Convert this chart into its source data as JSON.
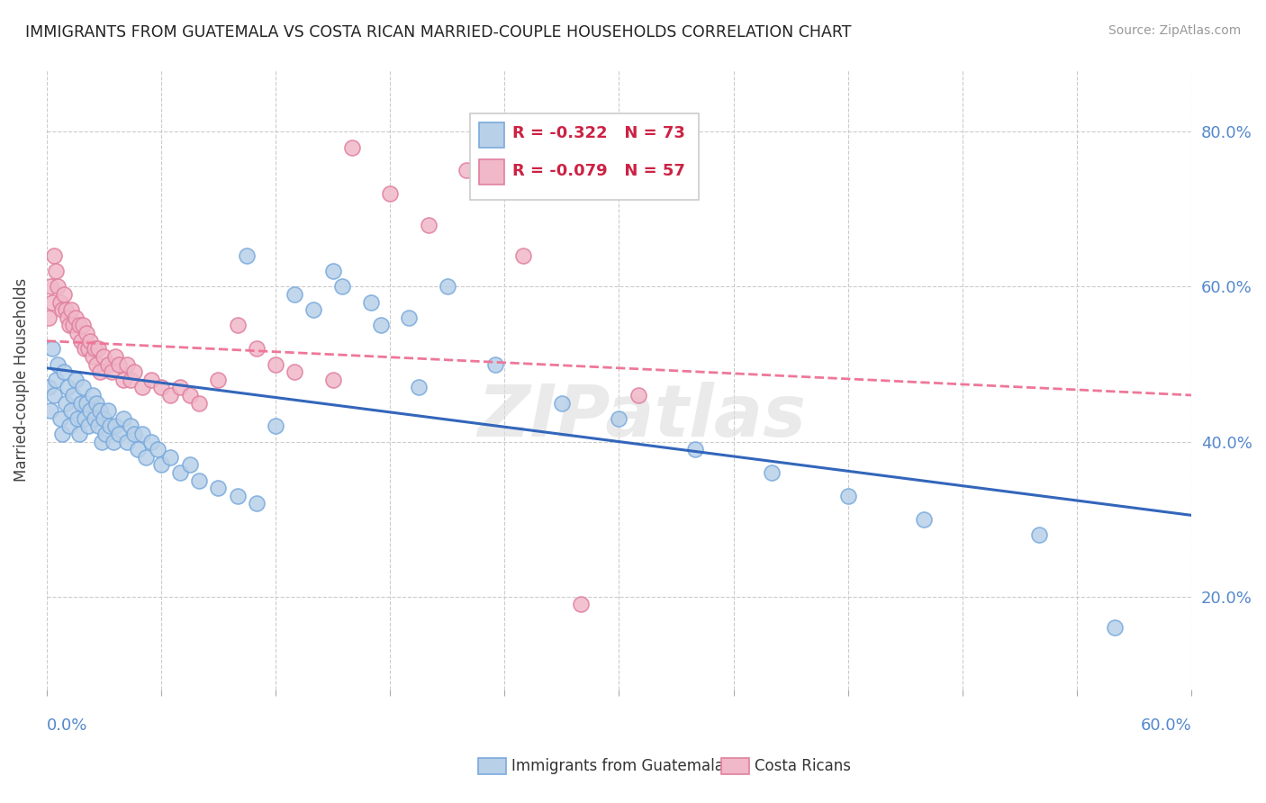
{
  "title": "IMMIGRANTS FROM GUATEMALA VS COSTA RICAN MARRIED-COUPLE HOUSEHOLDS CORRELATION CHART",
  "source": "Source: ZipAtlas.com",
  "ylabel": "Married-couple Households",
  "xlim": [
    0.0,
    0.6
  ],
  "ylim": [
    0.08,
    0.88
  ],
  "right_yticks": [
    0.2,
    0.4,
    0.6,
    0.8
  ],
  "right_yticklabels": [
    "20.0%",
    "40.0%",
    "60.0%",
    "80.0%"
  ],
  "legend_blue_r": "R = -0.322",
  "legend_blue_n": "N = 73",
  "legend_pink_r": "R = -0.079",
  "legend_pink_n": "N = 57",
  "blue_color": "#b8d0e8",
  "blue_edge": "#7aaadd",
  "pink_color": "#f0b8c8",
  "pink_edge": "#e080a0",
  "blue_line_color": "#3366bb",
  "pink_line_color": "#ee7799",
  "watermark": "ZIPatlas",
  "blue_scatter_x": [
    0.001,
    0.002,
    0.003,
    0.004,
    0.005,
    0.006,
    0.007,
    0.008,
    0.009,
    0.01,
    0.011,
    0.012,
    0.013,
    0.014,
    0.015,
    0.016,
    0.017,
    0.018,
    0.019,
    0.02,
    0.021,
    0.022,
    0.023,
    0.024,
    0.025,
    0.026,
    0.027,
    0.028,
    0.029,
    0.03,
    0.031,
    0.032,
    0.033,
    0.035,
    0.036,
    0.038,
    0.04,
    0.042,
    0.044,
    0.046,
    0.048,
    0.05,
    0.052,
    0.055,
    0.058,
    0.06,
    0.065,
    0.07,
    0.075,
    0.08,
    0.09,
    0.1,
    0.11,
    0.12,
    0.13,
    0.14,
    0.15,
    0.17,
    0.19,
    0.21,
    0.105,
    0.155,
    0.175,
    0.195,
    0.235,
    0.27,
    0.3,
    0.34,
    0.38,
    0.42,
    0.46,
    0.52,
    0.56
  ],
  "blue_scatter_y": [
    0.47,
    0.44,
    0.52,
    0.46,
    0.48,
    0.5,
    0.43,
    0.41,
    0.49,
    0.45,
    0.47,
    0.42,
    0.44,
    0.46,
    0.48,
    0.43,
    0.41,
    0.45,
    0.47,
    0.43,
    0.45,
    0.42,
    0.44,
    0.46,
    0.43,
    0.45,
    0.42,
    0.44,
    0.4,
    0.43,
    0.41,
    0.44,
    0.42,
    0.4,
    0.42,
    0.41,
    0.43,
    0.4,
    0.42,
    0.41,
    0.39,
    0.41,
    0.38,
    0.4,
    0.39,
    0.37,
    0.38,
    0.36,
    0.37,
    0.35,
    0.34,
    0.33,
    0.32,
    0.42,
    0.59,
    0.57,
    0.62,
    0.58,
    0.56,
    0.6,
    0.64,
    0.6,
    0.55,
    0.47,
    0.5,
    0.45,
    0.43,
    0.39,
    0.36,
    0.33,
    0.3,
    0.28,
    0.16
  ],
  "pink_scatter_x": [
    0.001,
    0.002,
    0.003,
    0.004,
    0.005,
    0.006,
    0.007,
    0.008,
    0.009,
    0.01,
    0.011,
    0.012,
    0.013,
    0.014,
    0.015,
    0.016,
    0.017,
    0.018,
    0.019,
    0.02,
    0.021,
    0.022,
    0.023,
    0.024,
    0.025,
    0.026,
    0.027,
    0.028,
    0.03,
    0.032,
    0.034,
    0.036,
    0.038,
    0.04,
    0.042,
    0.044,
    0.046,
    0.05,
    0.055,
    0.06,
    0.065,
    0.07,
    0.075,
    0.08,
    0.09,
    0.1,
    0.11,
    0.12,
    0.13,
    0.15,
    0.16,
    0.18,
    0.2,
    0.22,
    0.25,
    0.28,
    0.31
  ],
  "pink_scatter_y": [
    0.56,
    0.6,
    0.58,
    0.64,
    0.62,
    0.6,
    0.58,
    0.57,
    0.59,
    0.57,
    0.56,
    0.55,
    0.57,
    0.55,
    0.56,
    0.54,
    0.55,
    0.53,
    0.55,
    0.52,
    0.54,
    0.52,
    0.53,
    0.51,
    0.52,
    0.5,
    0.52,
    0.49,
    0.51,
    0.5,
    0.49,
    0.51,
    0.5,
    0.48,
    0.5,
    0.48,
    0.49,
    0.47,
    0.48,
    0.47,
    0.46,
    0.47,
    0.46,
    0.45,
    0.48,
    0.55,
    0.52,
    0.5,
    0.49,
    0.48,
    0.78,
    0.72,
    0.68,
    0.75,
    0.64,
    0.19,
    0.46
  ],
  "blue_trendline_x": [
    0.0,
    0.6
  ],
  "blue_trendline_y": [
    0.495,
    0.305
  ],
  "pink_trendline_x": [
    0.0,
    0.6
  ],
  "pink_trendline_y": [
    0.53,
    0.46
  ]
}
